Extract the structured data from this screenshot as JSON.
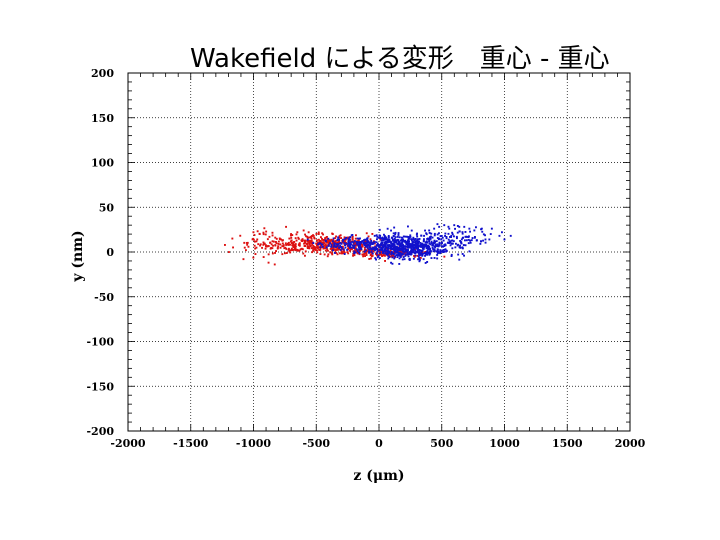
{
  "title": "Wakefield による変形　重心 - 重心",
  "chart_data": {
    "type": "scatter",
    "title": "Wakefield による変形　重心 - 重心",
    "xlabel": "z (μm)",
    "ylabel": "y (nm)",
    "xlim": [
      -2000,
      2000
    ],
    "ylim": [
      -200,
      200
    ],
    "xticks": [
      -2000,
      -1500,
      -1000,
      -500,
      0,
      500,
      1000,
      1500,
      2000
    ],
    "yticks": [
      -200,
      -150,
      -100,
      -50,
      0,
      50,
      100,
      150,
      200
    ],
    "grid": true,
    "legend": "none",
    "series": [
      {
        "color": "#dd1111",
        "clusters": [
          {
            "n": 500,
            "x_mean": -420,
            "x_sd": 230,
            "y_mean": 8,
            "y_sd": 5
          },
          {
            "n": 60,
            "x_mean": -900,
            "x_sd": 120,
            "y_mean": 10,
            "y_sd": 7
          },
          {
            "n": 150,
            "x_mean": 80,
            "x_sd": 140,
            "y_mean": -1,
            "y_sd": 3
          }
        ],
        "points": [
          [
            -1080,
            -8
          ],
          [
            -1060,
            2
          ],
          [
            -1050,
            8
          ],
          [
            -1000,
            22
          ],
          [
            -970,
            14
          ],
          [
            -950,
            20
          ],
          [
            -880,
            -12
          ],
          [
            -830,
            -14
          ],
          [
            -780,
            14
          ],
          [
            -740,
            28
          ],
          [
            -700,
            20
          ],
          [
            -650,
            22
          ],
          [
            -600,
            24
          ],
          [
            -560,
            22
          ],
          [
            -520,
            18
          ],
          [
            -480,
            20
          ]
        ]
      },
      {
        "color": "#1111cc",
        "clusters": [
          {
            "n": 700,
            "x_mean": 230,
            "x_sd": 190,
            "y_mean": 6,
            "y_sd": 7
          },
          {
            "n": 80,
            "x_mean": 680,
            "x_sd": 110,
            "y_mean": 16,
            "y_sd": 6
          },
          {
            "n": 150,
            "x_mean": -180,
            "x_sd": 160,
            "y_mean": 8,
            "y_sd": 4
          }
        ],
        "points": [
          [
            1050,
            18
          ],
          [
            1000,
            14
          ],
          [
            980,
            22
          ],
          [
            960,
            18
          ],
          [
            900,
            26
          ],
          [
            880,
            14
          ],
          [
            820,
            26
          ],
          [
            760,
            24
          ],
          [
            720,
            26
          ],
          [
            680,
            28
          ],
          [
            640,
            28
          ],
          [
            600,
            30
          ],
          [
            560,
            26
          ],
          [
            520,
            30
          ],
          [
            480,
            28
          ],
          [
            440,
            26
          ],
          [
            400,
            24
          ]
        ]
      }
    ]
  }
}
